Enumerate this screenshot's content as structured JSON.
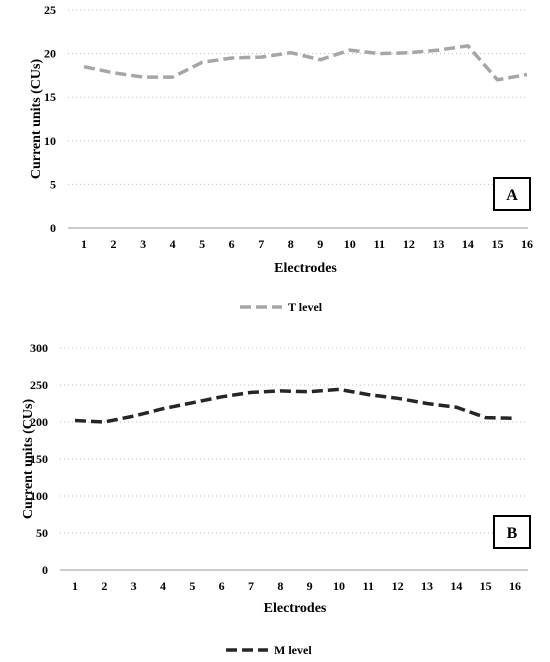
{
  "chart_data": [
    {
      "type": "line",
      "panel_label": "A",
      "xlabel": "Electrodes",
      "ylabel": "Current units (CUs)",
      "categories": [
        "1",
        "2",
        "3",
        "4",
        "5",
        "6",
        "7",
        "8",
        "9",
        "10",
        "11",
        "12",
        "13",
        "14",
        "15",
        "16"
      ],
      "ylim": [
        0,
        25
      ],
      "yticks": [
        0,
        5,
        10,
        15,
        20,
        25
      ],
      "grid": "horizontal dotted",
      "legend_position": "bottom",
      "series": [
        {
          "name": "T level",
          "color": "#a6a6a6",
          "line_style": "dashed",
          "values": [
            18.5,
            17.8,
            17.3,
            17.3,
            19.0,
            19.5,
            19.6,
            20.1,
            19.3,
            20.4,
            20.0,
            20.1,
            20.4,
            20.9,
            17.0,
            17.6
          ]
        }
      ]
    },
    {
      "type": "line",
      "panel_label": "B",
      "xlabel": "Electrodes",
      "ylabel": "Current units (CUs)",
      "categories": [
        "1",
        "2",
        "3",
        "4",
        "5",
        "6",
        "7",
        "8",
        "9",
        "10",
        "11",
        "12",
        "13",
        "14",
        "15",
        "16"
      ],
      "ylim": [
        0,
        300
      ],
      "yticks": [
        0,
        50,
        100,
        150,
        200,
        250,
        300
      ],
      "grid": "horizontal dotted",
      "legend_position": "bottom",
      "series": [
        {
          "name": "M level",
          "color": "#262626",
          "line_style": "dashed",
          "values": [
            202,
            200,
            208,
            218,
            226,
            234,
            240,
            242,
            241,
            244,
            237,
            232,
            225,
            220,
            206,
            205
          ]
        }
      ]
    }
  ]
}
